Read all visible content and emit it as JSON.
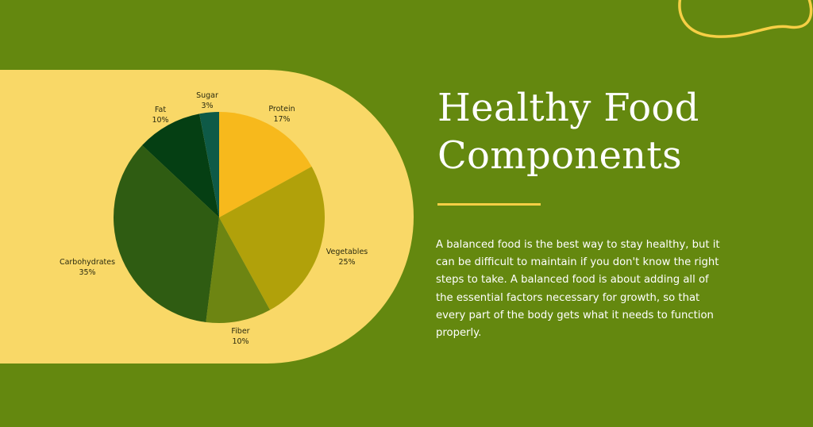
{
  "colors": {
    "background": "#64880f",
    "panel": "#f9d867",
    "accent_line": "#f6cf45"
  },
  "heading": {
    "line1": "Healthy Food",
    "line2": "Components"
  },
  "description": "A balanced food is the best way to stay healthy, but it can be difficult to maintain if you don't know the right steps to take. A balanced food is about adding all of the essential factors necessary for growth, so that every part of the body gets what it needs to function properly.",
  "chart_data": {
    "type": "pie",
    "title": "",
    "slices": [
      {
        "label": "Protein",
        "value": 17,
        "pct": "17%",
        "color": "#f7b91c"
      },
      {
        "label": "Vegetables",
        "value": 25,
        "pct": "25%",
        "color": "#b1a10a"
      },
      {
        "label": "Fiber",
        "value": 10,
        "pct": "10%",
        "color": "#6d8512"
      },
      {
        "label": "Carbohydrates",
        "value": 35,
        "pct": "35%",
        "color": "#2f5c12"
      },
      {
        "label": "Fat",
        "value": 10,
        "pct": "10%",
        "color": "#053f13"
      },
      {
        "label": "Sugar",
        "value": 3,
        "pct": "3%",
        "color": "#0e5a47"
      }
    ]
  }
}
